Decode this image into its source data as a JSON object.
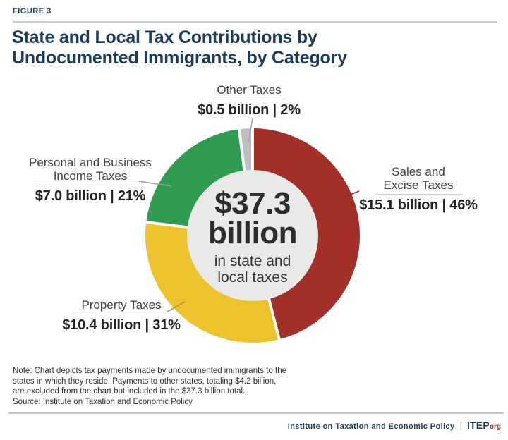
{
  "figure_label": "FIGURE 3",
  "header": {
    "title_line1": "State and Local Tax Contributions by",
    "title_line2": "Undocumented Immigrants, by Category"
  },
  "chart_data": {
    "type": "pie",
    "donut": true,
    "title": "State and Local Tax Contributions by Undocumented Immigrants, by Category",
    "units": "billions of USD",
    "total_billion": 37.3,
    "legend_position": "callouts",
    "center": {
      "headline": "$37.3",
      "headline2": "billion",
      "caption_line1": "in state and",
      "caption_line2": "local taxes"
    },
    "slices": [
      {
        "label": "Sales and Excise Taxes",
        "value_billion": 15.1,
        "percent": 46,
        "display": "$15.1 billion | 46%",
        "color": "#a33028",
        "leader_color": "#8e2b23"
      },
      {
        "label": "Property Taxes",
        "value_billion": 10.4,
        "percent": 31,
        "display": "$10.4 billion | 31%",
        "color": "#ecc32d",
        "leader_color": "#ad9742"
      },
      {
        "label": "Personal and Business Income Taxes",
        "value_billion": 7.0,
        "percent": 21,
        "display": "$7.0 billion | 21%",
        "color": "#2f9c52",
        "leader_color": "#93a296"
      },
      {
        "label": "Other Taxes",
        "value_billion": 0.5,
        "percent": 2,
        "display": "$0.5 billion | 2%",
        "color": "#bebec2",
        "leader_color": "#a6a6aa"
      }
    ],
    "hole_color": "#e9e9e7"
  },
  "callout_name_lines": {
    "income": [
      "Personal and Business",
      "Income Taxes"
    ],
    "sales": [
      "Sales and",
      "Excise Taxes"
    ]
  },
  "note": {
    "line1": "Note: Chart depicts tax payments made by undocumented immigrants to the",
    "line2": "states in which they reside. Payments to other states, totaling $4.2 billion,",
    "line3": "are excluded from the chart but included in the $37.3 billion total.",
    "source": "Source: Institute on Taxation and Economic Policy"
  },
  "footer": {
    "org_name": "Institute on Taxation and Economic Policy",
    "separator": "|",
    "brand": "ITEP",
    "brand_suffix": "org"
  }
}
